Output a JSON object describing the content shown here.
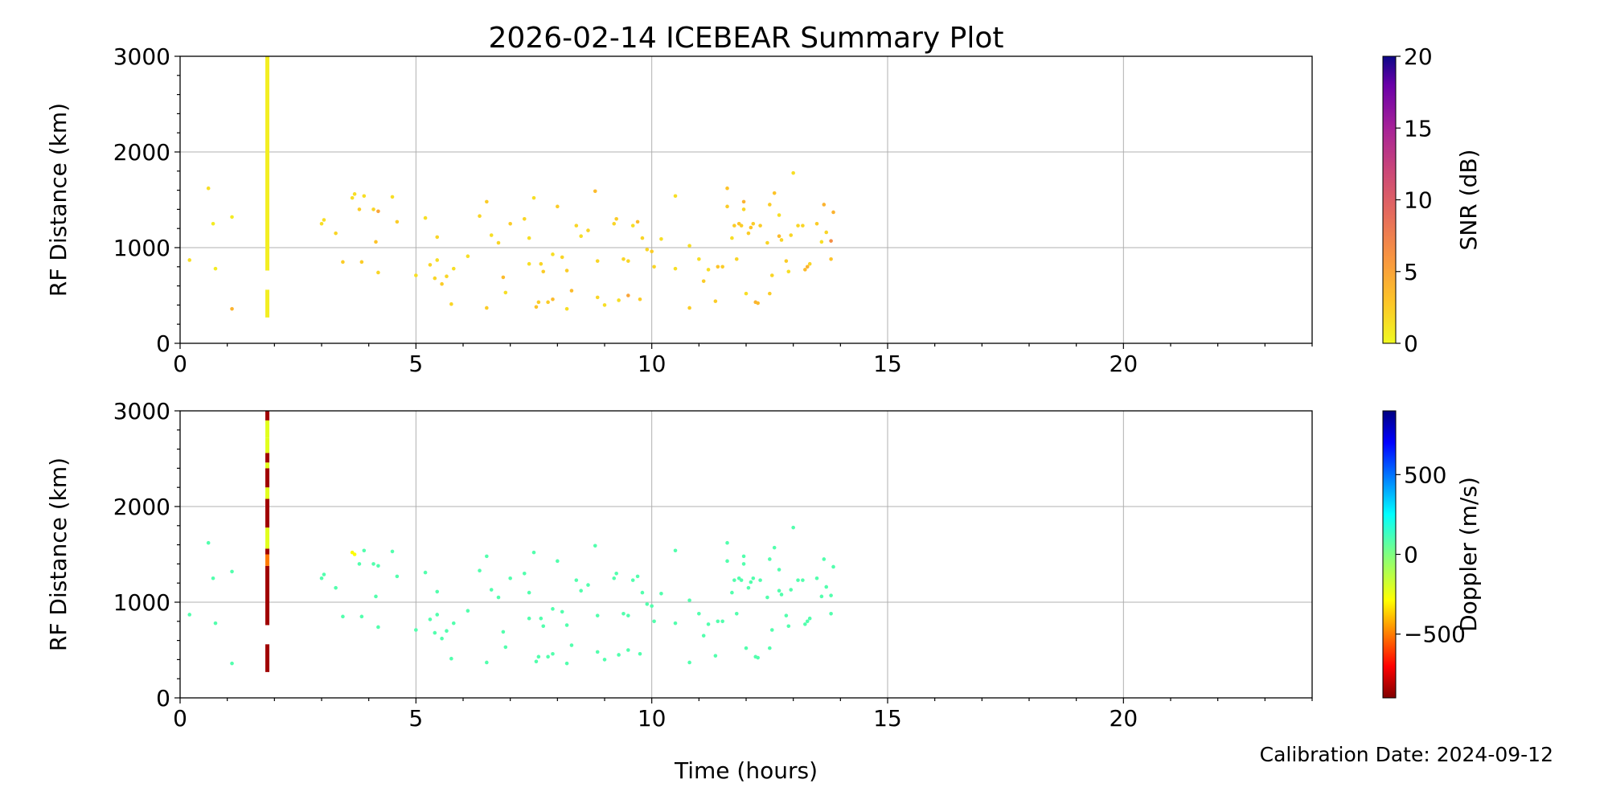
{
  "figure": {
    "title": "2026-02-14 ICEBEAR Summary Plot",
    "xlabel": "Time (hours)",
    "footer": "Calibration Date: 2024-09-12"
  },
  "chart_data": [
    {
      "type": "scatter",
      "name": "snr-panel",
      "xlabel": "",
      "ylabel": "RF Distance (km)",
      "xlim": [
        0,
        24
      ],
      "ylim": [
        0,
        3000
      ],
      "xticks": [
        0,
        5,
        10,
        15,
        20
      ],
      "yticks": [
        0,
        1000,
        2000,
        3000
      ],
      "grid": true,
      "color_by": "snr",
      "colorbar": {
        "label": "SNR (dB)",
        "range": [
          0,
          20
        ],
        "ticks": [
          0,
          5,
          10,
          15,
          20
        ],
        "colormap": "plasma_r"
      },
      "vertical_band": {
        "x": 1.85,
        "y_segments": [
          [
            270,
            560
          ],
          [
            760,
            3000
          ]
        ],
        "snr": 0.6
      },
      "points": [
        [
          0.2,
          870,
          1.5
        ],
        [
          0.6,
          1620,
          1.5
        ],
        [
          0.7,
          1250,
          0.8
        ],
        [
          0.75,
          780,
          0.8
        ],
        [
          1.1,
          1320,
          0.8
        ],
        [
          1.1,
          360,
          4.0
        ],
        [
          3.0,
          1250,
          1.5
        ],
        [
          3.05,
          1290,
          1.5
        ],
        [
          3.3,
          1150,
          2.0
        ],
        [
          3.45,
          850,
          2.5
        ],
        [
          3.65,
          1520,
          1.5
        ],
        [
          3.7,
          1560,
          1.5
        ],
        [
          3.8,
          1400,
          2.5
        ],
        [
          3.85,
          850,
          2.5
        ],
        [
          3.9,
          1540,
          1.5
        ],
        [
          4.1,
          1400,
          2.0
        ],
        [
          4.15,
          1060,
          3.0
        ],
        [
          4.2,
          1380,
          5.0
        ],
        [
          4.2,
          740,
          2.0
        ],
        [
          4.5,
          1530,
          1.5
        ],
        [
          4.6,
          1270,
          2.5
        ],
        [
          5.0,
          710,
          1.5
        ],
        [
          5.2,
          1310,
          1.5
        ],
        [
          5.3,
          820,
          2.0
        ],
        [
          5.4,
          680,
          2.0
        ],
        [
          5.45,
          870,
          1.5
        ],
        [
          5.45,
          1110,
          2.0
        ],
        [
          5.55,
          620,
          2.5
        ],
        [
          5.65,
          700,
          2.0
        ],
        [
          5.75,
          410,
          2.0
        ],
        [
          5.8,
          780,
          1.5
        ],
        [
          6.1,
          910,
          1.5
        ],
        [
          6.35,
          1330,
          2.0
        ],
        [
          6.5,
          1480,
          2.5
        ],
        [
          6.5,
          370,
          2.5
        ],
        [
          6.6,
          1130,
          1.5
        ],
        [
          6.75,
          1050,
          2.0
        ],
        [
          6.85,
          690,
          3.5
        ],
        [
          6.9,
          530,
          1.5
        ],
        [
          7.0,
          1250,
          2.5
        ],
        [
          7.3,
          1300,
          2.0
        ],
        [
          7.4,
          1100,
          1.5
        ],
        [
          7.4,
          830,
          1.5
        ],
        [
          7.5,
          1520,
          1.5
        ],
        [
          7.55,
          380,
          3.0
        ],
        [
          7.6,
          430,
          2.5
        ],
        [
          7.65,
          830,
          2.0
        ],
        [
          7.7,
          750,
          2.5
        ],
        [
          7.8,
          430,
          2.5
        ],
        [
          7.9,
          460,
          3.5
        ],
        [
          7.9,
          930,
          1.5
        ],
        [
          8.0,
          1430,
          2.5
        ],
        [
          8.1,
          900,
          2.0
        ],
        [
          8.2,
          760,
          2.5
        ],
        [
          8.2,
          360,
          1.5
        ],
        [
          8.3,
          550,
          3.5
        ],
        [
          8.4,
          1230,
          2.0
        ],
        [
          8.5,
          1120,
          1.5
        ],
        [
          8.65,
          1180,
          2.0
        ],
        [
          8.8,
          1590,
          3.5
        ],
        [
          8.85,
          860,
          2.0
        ],
        [
          8.85,
          480,
          2.0
        ],
        [
          9.0,
          400,
          1.5
        ],
        [
          9.2,
          1250,
          2.0
        ],
        [
          9.25,
          1300,
          2.5
        ],
        [
          9.3,
          450,
          1.5
        ],
        [
          9.4,
          880,
          2.0
        ],
        [
          9.5,
          500,
          5.0
        ],
        [
          9.5,
          860,
          2.0
        ],
        [
          9.6,
          1230,
          1.5
        ],
        [
          9.7,
          1270,
          3.5
        ],
        [
          9.75,
          460,
          2.5
        ],
        [
          9.8,
          1100,
          2.0
        ],
        [
          9.9,
          980,
          2.0
        ],
        [
          10.0,
          960,
          2.5
        ],
        [
          10.05,
          800,
          2.0
        ],
        [
          10.2,
          1090,
          1.5
        ],
        [
          10.5,
          1540,
          1.5
        ],
        [
          10.5,
          780,
          1.5
        ],
        [
          10.8,
          1020,
          1.5
        ],
        [
          10.8,
          370,
          2.5
        ],
        [
          11.0,
          880,
          1.5
        ],
        [
          11.1,
          650,
          2.5
        ],
        [
          11.2,
          770,
          1.5
        ],
        [
          11.35,
          440,
          2.5
        ],
        [
          11.4,
          800,
          3.0
        ],
        [
          11.5,
          800,
          2.5
        ],
        [
          11.6,
          1620,
          3.0
        ],
        [
          11.6,
          1430,
          2.5
        ],
        [
          11.7,
          1100,
          1.5
        ],
        [
          11.75,
          1230,
          2.5
        ],
        [
          11.8,
          880,
          2.0
        ],
        [
          11.85,
          1250,
          3.0
        ],
        [
          11.9,
          1230,
          2.5
        ],
        [
          11.95,
          1400,
          2.0
        ],
        [
          11.95,
          1480,
          4.0
        ],
        [
          12.0,
          520,
          1.5
        ],
        [
          12.05,
          1150,
          2.5
        ],
        [
          12.1,
          1210,
          3.0
        ],
        [
          12.15,
          1250,
          2.5
        ],
        [
          12.2,
          430,
          4.0
        ],
        [
          12.25,
          420,
          3.5
        ],
        [
          12.3,
          1230,
          2.5
        ],
        [
          12.45,
          1050,
          2.0
        ],
        [
          12.5,
          1450,
          2.5
        ],
        [
          12.5,
          520,
          2.5
        ],
        [
          12.55,
          710,
          2.0
        ],
        [
          12.6,
          1570,
          3.0
        ],
        [
          12.7,
          1340,
          1.5
        ],
        [
          12.7,
          1120,
          3.5
        ],
        [
          12.75,
          1080,
          2.0
        ],
        [
          12.85,
          860,
          2.5
        ],
        [
          12.9,
          750,
          1.5
        ],
        [
          12.95,
          1130,
          2.0
        ],
        [
          13.0,
          1780,
          1.5
        ],
        [
          13.1,
          1230,
          2.0
        ],
        [
          13.2,
          1230,
          2.0
        ],
        [
          13.25,
          770,
          3.5
        ],
        [
          13.3,
          800,
          4.0
        ],
        [
          13.35,
          830,
          2.0
        ],
        [
          13.5,
          1250,
          2.5
        ],
        [
          13.6,
          1060,
          1.5
        ],
        [
          13.65,
          1450,
          4.0
        ],
        [
          13.7,
          1160,
          2.0
        ],
        [
          13.8,
          880,
          3.0
        ],
        [
          13.85,
          1370,
          4.0
        ],
        [
          13.8,
          1070,
          6.5
        ]
      ]
    },
    {
      "type": "scatter",
      "name": "doppler-panel",
      "xlabel": "",
      "ylabel": "RF Distance (km)",
      "xlim": [
        0,
        24
      ],
      "ylim": [
        0,
        3000
      ],
      "xticks": [
        0,
        5,
        10,
        15,
        20
      ],
      "yticks": [
        0,
        1000,
        2000,
        3000
      ],
      "grid": true,
      "color_by": "doppler",
      "colorbar": {
        "label": "Doppler (m/s)",
        "range": [
          -900,
          900
        ],
        "ticks": [
          -500,
          0,
          500
        ],
        "colormap": "jet_r"
      },
      "vertical_band": {
        "x": 1.85,
        "segments": [
          [
            270,
            560,
            -850
          ],
          [
            760,
            1380,
            -850
          ],
          [
            1380,
            1500,
            -500
          ],
          [
            1500,
            1560,
            -850
          ],
          [
            1560,
            1780,
            -220
          ],
          [
            1780,
            2080,
            -850
          ],
          [
            2080,
            2200,
            -220
          ],
          [
            2200,
            2400,
            -850
          ],
          [
            2400,
            2460,
            -220
          ],
          [
            2460,
            2560,
            -850
          ],
          [
            2560,
            2720,
            -220
          ],
          [
            2720,
            2900,
            -220
          ],
          [
            2900,
            3000,
            -850
          ]
        ]
      },
      "points": [
        [
          0.2,
          870,
          90
        ],
        [
          0.6,
          1620,
          90
        ],
        [
          0.7,
          1250,
          90
        ],
        [
          0.75,
          780,
          90
        ],
        [
          1.1,
          1320,
          90
        ],
        [
          1.1,
          360,
          90
        ],
        [
          3.0,
          1250,
          90
        ],
        [
          3.05,
          1290,
          90
        ],
        [
          3.3,
          1150,
          90
        ],
        [
          3.45,
          850,
          90
        ],
        [
          3.65,
          1520,
          -300
        ],
        [
          3.7,
          1500,
          -280
        ],
        [
          3.8,
          1400,
          90
        ],
        [
          3.85,
          850,
          90
        ],
        [
          3.9,
          1540,
          90
        ],
        [
          4.1,
          1400,
          90
        ],
        [
          4.15,
          1060,
          90
        ],
        [
          4.2,
          1380,
          90
        ],
        [
          4.2,
          740,
          90
        ],
        [
          4.5,
          1530,
          90
        ],
        [
          4.6,
          1270,
          90
        ],
        [
          5.0,
          710,
          90
        ],
        [
          5.2,
          1310,
          90
        ],
        [
          5.3,
          820,
          90
        ],
        [
          5.4,
          680,
          90
        ],
        [
          5.45,
          870,
          90
        ],
        [
          5.45,
          1110,
          90
        ],
        [
          5.55,
          620,
          90
        ],
        [
          5.65,
          700,
          90
        ],
        [
          5.75,
          410,
          90
        ],
        [
          5.8,
          780,
          90
        ],
        [
          6.1,
          910,
          90
        ],
        [
          6.35,
          1330,
          90
        ],
        [
          6.5,
          1480,
          90
        ],
        [
          6.5,
          370,
          90
        ],
        [
          6.6,
          1130,
          90
        ],
        [
          6.75,
          1050,
          90
        ],
        [
          6.85,
          690,
          90
        ],
        [
          6.9,
          530,
          90
        ],
        [
          7.0,
          1250,
          90
        ],
        [
          7.3,
          1300,
          90
        ],
        [
          7.4,
          1100,
          90
        ],
        [
          7.4,
          830,
          90
        ],
        [
          7.5,
          1520,
          90
        ],
        [
          7.55,
          380,
          90
        ],
        [
          7.6,
          430,
          90
        ],
        [
          7.65,
          830,
          90
        ],
        [
          7.7,
          750,
          90
        ],
        [
          7.8,
          430,
          90
        ],
        [
          7.9,
          460,
          90
        ],
        [
          7.9,
          930,
          90
        ],
        [
          8.0,
          1430,
          90
        ],
        [
          8.1,
          900,
          90
        ],
        [
          8.2,
          760,
          90
        ],
        [
          8.2,
          360,
          90
        ],
        [
          8.3,
          550,
          90
        ],
        [
          8.4,
          1230,
          90
        ],
        [
          8.5,
          1120,
          90
        ],
        [
          8.65,
          1180,
          90
        ],
        [
          8.8,
          1590,
          90
        ],
        [
          8.85,
          860,
          90
        ],
        [
          8.85,
          480,
          90
        ],
        [
          9.0,
          400,
          90
        ],
        [
          9.2,
          1250,
          90
        ],
        [
          9.25,
          1300,
          90
        ],
        [
          9.3,
          450,
          90
        ],
        [
          9.4,
          880,
          90
        ],
        [
          9.5,
          500,
          90
        ],
        [
          9.5,
          860,
          90
        ],
        [
          9.6,
          1230,
          90
        ],
        [
          9.7,
          1270,
          90
        ],
        [
          9.75,
          460,
          90
        ],
        [
          9.8,
          1100,
          90
        ],
        [
          9.9,
          980,
          90
        ],
        [
          10.0,
          960,
          90
        ],
        [
          10.05,
          800,
          90
        ],
        [
          10.2,
          1090,
          90
        ],
        [
          10.5,
          1540,
          90
        ],
        [
          10.5,
          780,
          90
        ],
        [
          10.8,
          1020,
          90
        ],
        [
          10.8,
          370,
          90
        ],
        [
          11.0,
          880,
          90
        ],
        [
          11.1,
          650,
          90
        ],
        [
          11.2,
          770,
          90
        ],
        [
          11.35,
          440,
          90
        ],
        [
          11.4,
          800,
          90
        ],
        [
          11.5,
          800,
          90
        ],
        [
          11.6,
          1620,
          90
        ],
        [
          11.6,
          1430,
          90
        ],
        [
          11.7,
          1100,
          90
        ],
        [
          11.75,
          1230,
          90
        ],
        [
          11.8,
          880,
          90
        ],
        [
          11.85,
          1250,
          90
        ],
        [
          11.9,
          1230,
          90
        ],
        [
          11.95,
          1400,
          90
        ],
        [
          11.95,
          1480,
          90
        ],
        [
          12.0,
          520,
          90
        ],
        [
          12.05,
          1150,
          90
        ],
        [
          12.1,
          1210,
          90
        ],
        [
          12.15,
          1250,
          90
        ],
        [
          12.2,
          430,
          90
        ],
        [
          12.25,
          420,
          90
        ],
        [
          12.3,
          1230,
          90
        ],
        [
          12.45,
          1050,
          90
        ],
        [
          12.5,
          1450,
          90
        ],
        [
          12.5,
          520,
          90
        ],
        [
          12.55,
          710,
          90
        ],
        [
          12.6,
          1570,
          90
        ],
        [
          12.7,
          1340,
          90
        ],
        [
          12.7,
          1120,
          90
        ],
        [
          12.75,
          1080,
          90
        ],
        [
          12.85,
          860,
          90
        ],
        [
          12.9,
          750,
          90
        ],
        [
          12.95,
          1130,
          90
        ],
        [
          13.0,
          1780,
          90
        ],
        [
          13.1,
          1230,
          90
        ],
        [
          13.2,
          1230,
          90
        ],
        [
          13.25,
          770,
          90
        ],
        [
          13.3,
          800,
          90
        ],
        [
          13.35,
          830,
          90
        ],
        [
          13.5,
          1250,
          90
        ],
        [
          13.6,
          1060,
          90
        ],
        [
          13.65,
          1450,
          90
        ],
        [
          13.7,
          1160,
          90
        ],
        [
          13.8,
          880,
          90
        ],
        [
          13.85,
          1370,
          90
        ],
        [
          13.8,
          1070,
          90
        ]
      ]
    }
  ]
}
